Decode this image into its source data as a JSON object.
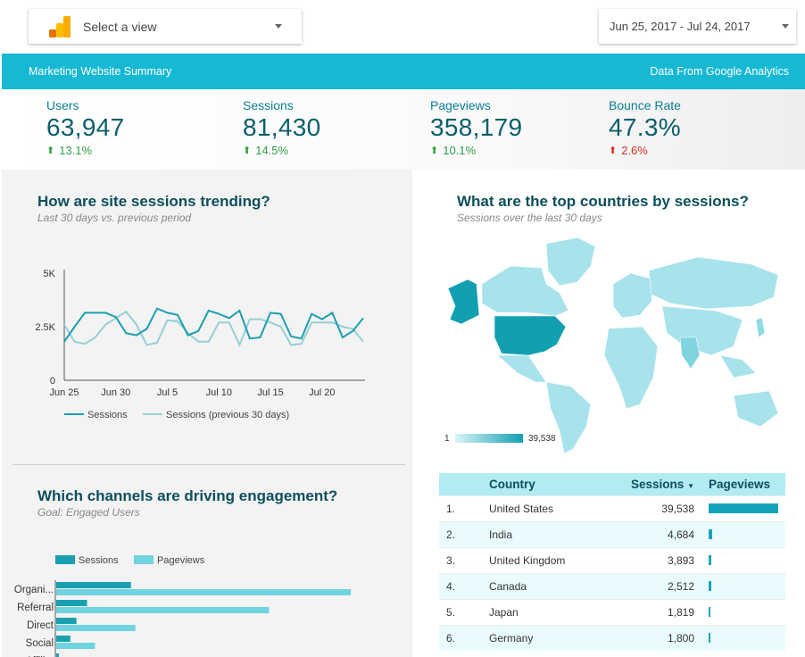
{
  "view_select": {
    "label": "Select a view",
    "icon": "analytics-logo-icon"
  },
  "date_range": {
    "label": "Jun 25, 2017 - Jul 24, 2017"
  },
  "banner": {
    "title": "Marketing Website Summary",
    "source": "Data From Google Analytics"
  },
  "colors": {
    "accent": "#17b8d4",
    "dark_teal": "#0b5e6b",
    "up": "#2e9e44",
    "down": "#d93025",
    "sessions": "#1a9fb0",
    "previous": "#96cfd6",
    "pageviews": "#6fd3e0"
  },
  "kpis": [
    {
      "label": "Users",
      "value": "63,947",
      "delta": "13.1%",
      "direction": "up"
    },
    {
      "label": "Sessions",
      "value": "81,430",
      "delta": "14.5%",
      "direction": "up"
    },
    {
      "label": "Pageviews",
      "value": "358,179",
      "delta": "10.1%",
      "direction": "up"
    },
    {
      "label": "Bounce Rate",
      "value": "47.3%",
      "delta": "2.6%",
      "direction": "down"
    }
  ],
  "trend": {
    "title": "How are site sessions trending?",
    "subtitle": "Last 30 days vs. previous period"
  },
  "channels": {
    "title": "Which channels are driving engagement?",
    "subtitle": "Goal: Engaged Users"
  },
  "countries": {
    "title": "What are the top countries by sessions?",
    "subtitle": "Sessions over the last 30 days",
    "legend_min": "1",
    "legend_max": "39,538",
    "headers": {
      "country": "Country",
      "sessions": "Sessions",
      "sort_icon": "▼",
      "pageviews": "Pageviews"
    },
    "rows": [
      {
        "rank": "1.",
        "country": "United States",
        "sessions": "39,538",
        "pageviews_share": 1.0
      },
      {
        "rank": "2.",
        "country": "India",
        "sessions": "4,684",
        "pageviews_share": 0.05
      },
      {
        "rank": "3.",
        "country": "United Kingdom",
        "sessions": "3,893",
        "pageviews_share": 0.04
      },
      {
        "rank": "4.",
        "country": "Canada",
        "sessions": "2,512",
        "pageviews_share": 0.035
      },
      {
        "rank": "5.",
        "country": "Japan",
        "sessions": "1,819",
        "pageviews_share": 0.03
      },
      {
        "rank": "6.",
        "country": "Germany",
        "sessions": "1,800",
        "pageviews_share": 0.02
      }
    ]
  },
  "chart_data": [
    {
      "type": "line",
      "x": [
        "Jun 25",
        "Jun 26",
        "Jun 27",
        "Jun 28",
        "Jun 29",
        "Jun 30",
        "Jul 1",
        "Jul 2",
        "Jul 3",
        "Jul 4",
        "Jul 5",
        "Jul 6",
        "Jul 7",
        "Jul 8",
        "Jul 9",
        "Jul 10",
        "Jul 11",
        "Jul 12",
        "Jul 13",
        "Jul 14",
        "Jul 15",
        "Jul 16",
        "Jul 17",
        "Jul 18",
        "Jul 19",
        "Jul 20",
        "Jul 21",
        "Jul 22",
        "Jul 23",
        "Jul 24"
      ],
      "xticks": [
        "Jun 25",
        "Jun 30",
        "Jul 5",
        "Jul 10",
        "Jul 15",
        "Jul 20"
      ],
      "yticks": [
        "0",
        "2.5K",
        "5K"
      ],
      "ylim": [
        0,
        5000
      ],
      "series": [
        {
          "name": "Sessions",
          "values": [
            1800,
            2500,
            3150,
            3150,
            3150,
            2950,
            2200,
            2100,
            2400,
            3350,
            3150,
            3050,
            2100,
            2300,
            3250,
            3100,
            2900,
            3250,
            1950,
            2000,
            3150,
            3100,
            2050,
            1950,
            3100,
            2850,
            3150,
            2000,
            2300,
            2900
          ]
        },
        {
          "name": "Sessions (previous 30 days)",
          "values": [
            2600,
            1800,
            1700,
            2000,
            2600,
            2900,
            3200,
            2600,
            1650,
            1750,
            2800,
            2750,
            2200,
            1800,
            1800,
            2700,
            2700,
            1650,
            2850,
            2850,
            2700,
            2500,
            1650,
            1700,
            2700,
            2700,
            2700,
            2500,
            2400,
            1800
          ]
        }
      ]
    },
    {
      "type": "bar",
      "orientation": "horizontal",
      "categories": [
        "Organi...",
        "Referral",
        "Direct",
        "Social",
        "Affili..."
      ],
      "series": [
        {
          "name": "Sessions",
          "values": [
            8500,
            3500,
            2300,
            1600,
            300
          ]
        },
        {
          "name": "Pageviews",
          "values": [
            33500,
            24200,
            9000,
            4400,
            0
          ]
        }
      ]
    }
  ]
}
